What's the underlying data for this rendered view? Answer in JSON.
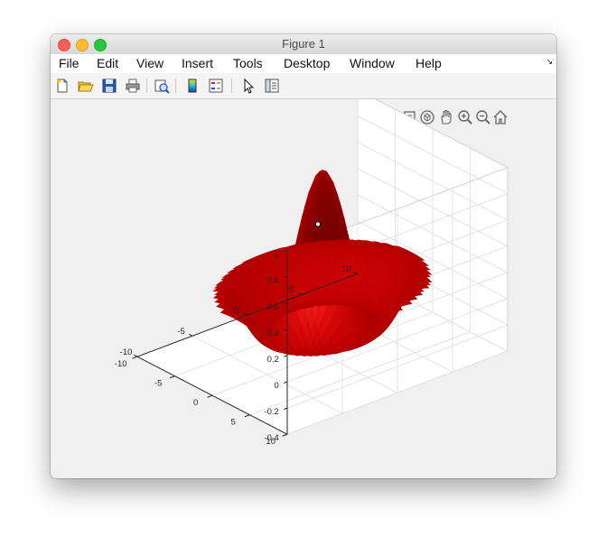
{
  "window": {
    "title": "Figure 1"
  },
  "menubar": {
    "items": [
      {
        "label": "File"
      },
      {
        "label": "Edit"
      },
      {
        "label": "View"
      },
      {
        "label": "Insert"
      },
      {
        "label": "Tools"
      },
      {
        "label": "Desktop"
      },
      {
        "label": "Window"
      },
      {
        "label": "Help"
      }
    ]
  },
  "toolbar": {
    "buttons": [
      "new-figure-icon",
      "open-file-icon",
      "save-icon",
      "print-icon",
      "print-preview-icon",
      "colorbar-icon",
      "legend-icon",
      "pointer-icon",
      "property-inspector-icon"
    ]
  },
  "axes_toolbar": {
    "buttons": [
      "brush-icon",
      "data-tips-icon",
      "rotate-3d-icon",
      "pan-icon",
      "zoom-in-icon",
      "zoom-out-icon",
      "home-icon"
    ]
  },
  "chart_data": {
    "type": "surface",
    "function": "sin(r)/r sombrero",
    "surface_color": "#cc0000",
    "grid": true,
    "x_ticks": [
      "-10",
      "-5",
      "0",
      "5",
      "10"
    ],
    "y_ticks": [
      "-10",
      "-5",
      "0",
      "5",
      "10"
    ],
    "z_ticks": [
      "-0.4",
      "-0.2",
      "0",
      "0.2",
      "0.4",
      "0.6",
      "0.8",
      "1"
    ],
    "xlim": [
      -10,
      10
    ],
    "ylim": [
      -10,
      10
    ],
    "zlim": [
      -0.4,
      1
    ]
  }
}
